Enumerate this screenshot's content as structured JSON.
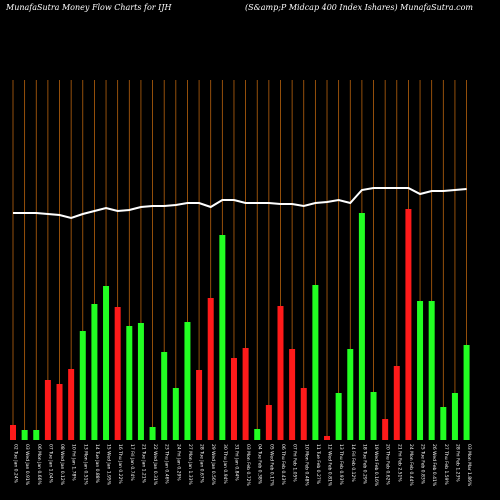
{
  "chart_data": {
    "type": "bar",
    "title": "MunafaSutra  Money Flow  Charts for IJH",
    "subtitle": "(S&amp;P Midcap 400  Index Ishares) MunafaSutra.com",
    "categories": [
      "02 Tue Jan 0.24%",
      "03 Wed Jan 0.91%",
      "06 Mon Jan 0.66%",
      "07 Tue Jan 1.04%",
      "08 Wed Jan 0.12%",
      "10 Fri Jan 1.78%",
      "13 Mon Jan 0.51%",
      "14 Tue Jan 0.88%",
      "15 Wed Jan 1.95%",
      "16 Thu Jan 0.22%",
      "17 Fri Jan 0.74%",
      "21 Tue Jan 1.21%",
      "22 Wed Jan 0.31%",
      "23 Thu Jan 0.46%",
      "24 Fri Jan 0.29%",
      "27 Mon Jan 1.33%",
      "28 Tue Jan 0.67%",
      "29 Wed Jan 0.56%",
      "30 Thu Jan 0.94%",
      "31 Fri Jan 0.84%",
      "03 Mon Feb 0.72%",
      "04 Tue Feb 0.38%",
      "05 Wed Feb 0.17%",
      "06 Thu Feb 0.43%",
      "07 Fri Feb 1.05%",
      "10 Mon Feb 0.48%",
      "11 Tue Feb 0.27%",
      "12 Wed Feb 0.81%",
      "13 Thu Feb 0.93%",
      "14 Fri Feb 0.12%",
      "18 Tue Feb 0.29%",
      "19 Wed Feb 0.16%",
      "20 Thu Feb 0.62%",
      "21 Fri Feb 2.51%",
      "24 Mon Feb 0.44%",
      "25 Tue Feb 0.83%",
      "26 Wed Feb 0.41%",
      "27 Thu Feb 1.59%",
      "28 Fri Feb 1.23%",
      "03 Mon Mar 1.86%"
    ],
    "values": [
      15,
      10,
      10,
      60,
      56,
      71,
      109,
      136,
      154,
      133,
      114,
      117,
      13,
      88,
      52,
      118,
      70,
      142,
      205,
      82,
      92,
      11,
      35,
      134,
      91,
      52,
      155,
      4,
      47,
      91,
      227,
      48,
      21,
      74,
      231,
      139,
      139,
      33,
      47,
      95
    ],
    "bar_colors": [
      "#ff1a1a",
      "#22ff22",
      "#22ff22",
      "#ff1a1a",
      "#ff1a1a",
      "#ff1a1a",
      "#22ff22",
      "#22ff22",
      "#22ff22",
      "#ff1a1a",
      "#22ff22",
      "#22ff22",
      "#22ff22",
      "#22ff22",
      "#22ff22",
      "#22ff22",
      "#ff1a1a",
      "#ff1a1a",
      "#22ff22",
      "#ff1a1a",
      "#ff1a1a",
      "#22ff22",
      "#ff1a1a",
      "#ff1a1a",
      "#ff1a1a",
      "#ff1a1a",
      "#22ff22",
      "#ff1a1a",
      "#22ff22",
      "#22ff22",
      "#22ff22",
      "#22ff22",
      "#ff1a1a",
      "#ff1a1a",
      "#ff1a1a",
      "#22ff22",
      "#22ff22",
      "#22ff22",
      "#22ff22",
      "#22ff22"
    ],
    "line_values": [
      227,
      227,
      227,
      226,
      225,
      222,
      226,
      229,
      232,
      229,
      230,
      233,
      234,
      234,
      235,
      237,
      237,
      233,
      240,
      240,
      237,
      237,
      237,
      236,
      236,
      234,
      237,
      238,
      240,
      237,
      250,
      252,
      252,
      252,
      252,
      246,
      249,
      249,
      250,
      251
    ],
    "line_color": "#ffffff",
    "grid_color": "#b8620e"
  }
}
